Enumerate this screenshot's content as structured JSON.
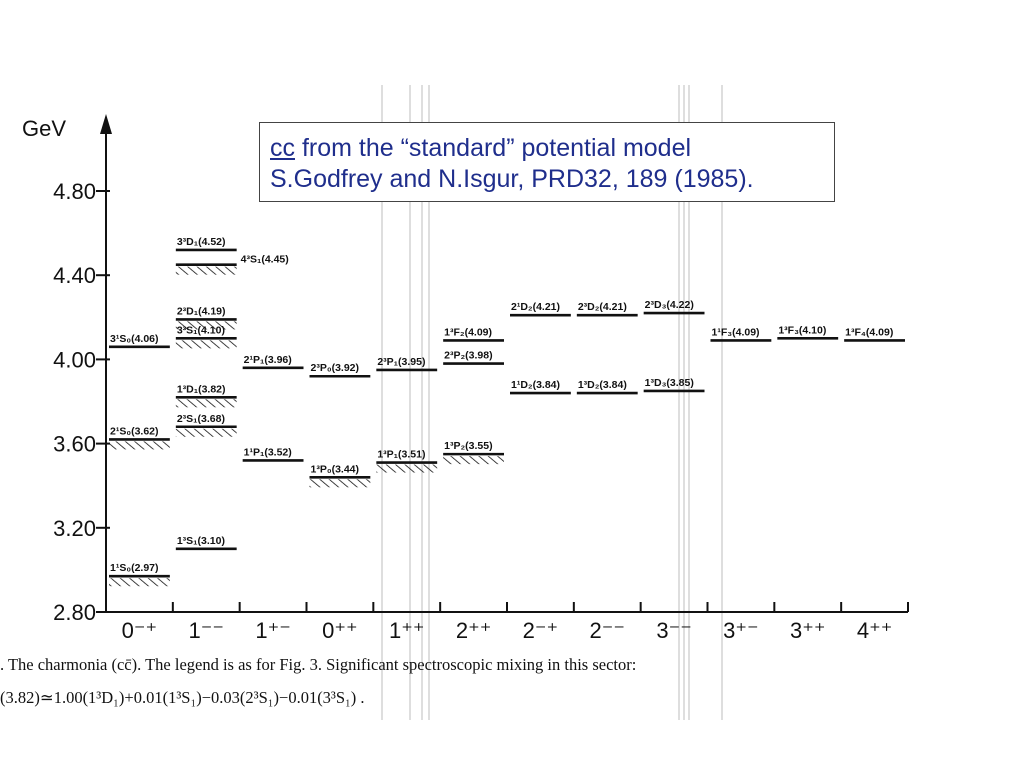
{
  "note": {
    "line1_cc": "cc",
    "line1_rest": " from the “standard” potential model",
    "line2": "S.Godfrey and N.Isgur, PRD32, 189 (1985)."
  },
  "caption": {
    "line1": ".  The charmonia (cc̄).  The legend is as for Fig. 3.  Significant spectroscopic mixing in this sector:",
    "line2": "(3.82)≃1.00(1³D₁)+0.01(1³S₁)−0.03(2³S₁)−0.01(3³S₁) ."
  },
  "chart_data": {
    "type": "level-diagram",
    "ylabel": "GeV",
    "ylim": [
      2.8,
      4.8
    ],
    "yticks": [
      "2.80",
      "3.20",
      "3.60",
      "4.00",
      "4.40",
      "4.80"
    ],
    "categories": [
      "0⁻⁺",
      "1⁻⁻",
      "1⁺⁻",
      "0⁺⁺",
      "1⁺⁺",
      "2⁺⁺",
      "2⁻⁺",
      "2⁻⁻",
      "3⁻⁻",
      "3⁺⁻",
      "3⁺⁺",
      "4⁺⁺"
    ],
    "levels": [
      {
        "col": 0,
        "mass": 2.97,
        "label": "1¹S₀(2.97)",
        "hatched": true
      },
      {
        "col": 0,
        "mass": 3.62,
        "label": "2¹S₀(3.62)",
        "hatched": true
      },
      {
        "col": 0,
        "mass": 4.06,
        "label": "3¹S₀(4.06)",
        "hatched": false
      },
      {
        "col": 1,
        "mass": 3.1,
        "label": "1³S₁(3.10)",
        "hatched": false
      },
      {
        "col": 1,
        "mass": 3.68,
        "label": "2³S₁(3.68)",
        "hatched": true
      },
      {
        "col": 1,
        "mass": 3.82,
        "label": "1³D₁(3.82)",
        "hatched": true
      },
      {
        "col": 1,
        "mass": 4.1,
        "label": "3³S₁(4.10)",
        "hatched": true
      },
      {
        "col": 1,
        "mass": 4.19,
        "label": "2³D₁(4.19)",
        "hatched": true
      },
      {
        "col": 1,
        "mass": 4.45,
        "label": "4³S₁(4.45)",
        "hatched": true
      },
      {
        "col": 1,
        "mass": 4.52,
        "label": "3³D₁(4.52)",
        "hatched": false
      },
      {
        "col": 2,
        "mass": 3.52,
        "label": "1¹P₁(3.52)",
        "hatched": false
      },
      {
        "col": 2,
        "mass": 3.96,
        "label": "2¹P₁(3.96)",
        "hatched": false
      },
      {
        "col": 3,
        "mass": 3.44,
        "label": "1³P₀(3.44)",
        "hatched": true
      },
      {
        "col": 3,
        "mass": 3.92,
        "label": "2³P₀(3.92)",
        "hatched": false
      },
      {
        "col": 4,
        "mass": 3.51,
        "label": "1³P₁(3.51)",
        "hatched": true
      },
      {
        "col": 4,
        "mass": 3.95,
        "label": "2³P₁(3.95)",
        "hatched": false
      },
      {
        "col": 5,
        "mass": 3.55,
        "label": "1³P₂(3.55)",
        "hatched": true
      },
      {
        "col": 5,
        "mass": 3.98,
        "label": "2³P₂(3.98)",
        "hatched": false
      },
      {
        "col": 5,
        "mass": 4.09,
        "label": "1³F₂(4.09)",
        "hatched": false
      },
      {
        "col": 6,
        "mass": 3.84,
        "label": "1¹D₂(3.84)",
        "hatched": false
      },
      {
        "col": 6,
        "mass": 4.21,
        "label": "2¹D₂(4.21)",
        "hatched": false
      },
      {
        "col": 7,
        "mass": 3.84,
        "label": "1³D₂(3.84)",
        "hatched": false
      },
      {
        "col": 7,
        "mass": 4.21,
        "label": "2³D₂(4.21)",
        "hatched": false
      },
      {
        "col": 8,
        "mass": 3.85,
        "label": "1³D₃(3.85)",
        "hatched": false
      },
      {
        "col": 8,
        "mass": 4.22,
        "label": "2³D₃(4.22)",
        "hatched": false
      },
      {
        "col": 9,
        "mass": 4.09,
        "label": "1¹F₃(4.09)",
        "hatched": false
      },
      {
        "col": 10,
        "mass": 4.1,
        "label": "1³F₃(4.10)",
        "hatched": false
      },
      {
        "col": 11,
        "mass": 4.09,
        "label": "1³F₄(4.09)",
        "hatched": false
      }
    ]
  }
}
